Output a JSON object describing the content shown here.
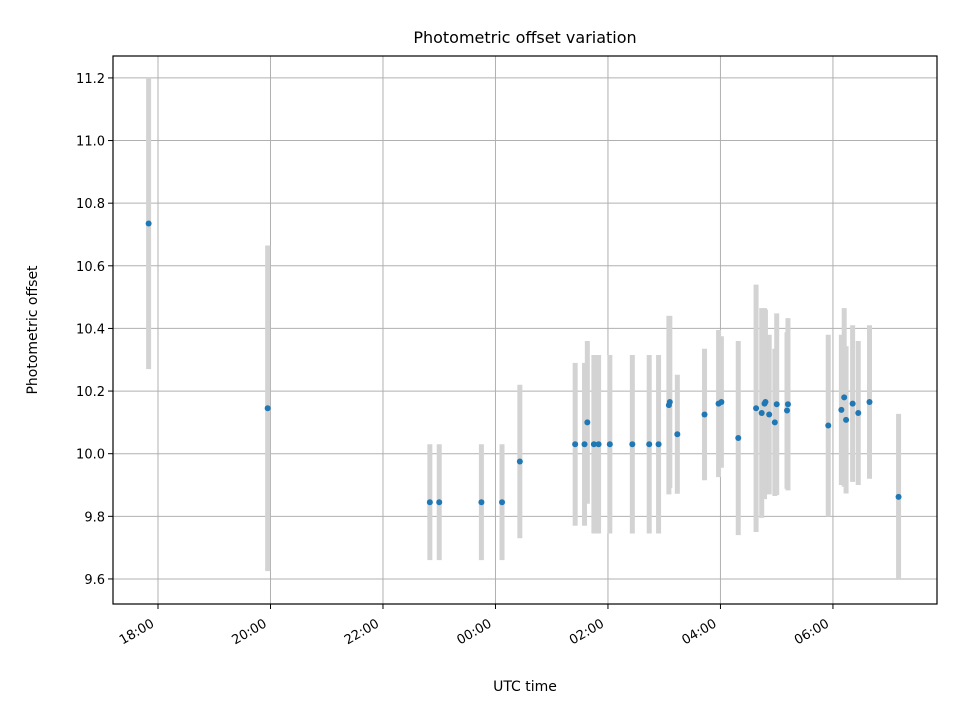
{
  "chart_data": {
    "type": "scatter",
    "title": "Photometric offset variation",
    "xlabel": "UTC time",
    "ylabel": "Photometric offset",
    "x_tick_labels": [
      "18:00",
      "20:00",
      "22:00",
      "00:00",
      "02:00",
      "04:00",
      "06:00"
    ],
    "y_tick_labels": [
      "9.6",
      "9.8",
      "10.0",
      "10.2",
      "10.4",
      "10.6",
      "10.8",
      "11.0",
      "11.2"
    ],
    "xlim_hours": [
      17.2,
      31.85
    ],
    "ylim": [
      9.52,
      11.27
    ],
    "x_ticks_hours": [
      18,
      20,
      22,
      24,
      26,
      28,
      30
    ],
    "y_ticks": [
      9.6,
      9.8,
      10.0,
      10.2,
      10.4,
      10.6,
      10.8,
      11.0,
      11.2
    ],
    "grid": true,
    "marker_color": "#1f77b4",
    "errorbar_color": "#d3d3d3",
    "points": [
      {
        "t": "17:50",
        "y": 10.735,
        "err": 0.465
      },
      {
        "t": "19:57",
        "y": 10.145,
        "err": 0.52
      },
      {
        "t": "22:50",
        "y": 9.845,
        "err": 0.185
      },
      {
        "t": "23:00",
        "y": 9.845,
        "err": 0.185
      },
      {
        "t": "23:45",
        "y": 9.845,
        "err": 0.185
      },
      {
        "t": "00:07",
        "y": 9.845,
        "err": 0.185
      },
      {
        "t": "00:26",
        "y": 9.975,
        "err": 0.245
      },
      {
        "t": "01:25",
        "y": 10.03,
        "err": 0.26
      },
      {
        "t": "01:35",
        "y": 10.03,
        "err": 0.26
      },
      {
        "t": "01:38",
        "y": 10.1,
        "err": 0.26
      },
      {
        "t": "01:45",
        "y": 10.03,
        "err": 0.285
      },
      {
        "t": "01:50",
        "y": 10.03,
        "err": 0.285
      },
      {
        "t": "02:02",
        "y": 10.03,
        "err": 0.285
      },
      {
        "t": "02:26",
        "y": 10.03,
        "err": 0.285
      },
      {
        "t": "02:44",
        "y": 10.03,
        "err": 0.285
      },
      {
        "t": "02:54",
        "y": 10.03,
        "err": 0.285
      },
      {
        "t": "03:05",
        "y": 10.155,
        "err": 0.285
      },
      {
        "t": "03:06",
        "y": 10.165,
        "err": 0.275
      },
      {
        "t": "03:14",
        "y": 10.062,
        "err": 0.19
      },
      {
        "t": "03:43",
        "y": 10.125,
        "err": 0.21
      },
      {
        "t": "03:58",
        "y": 10.16,
        "err": 0.235
      },
      {
        "t": "04:01",
        "y": 10.165,
        "err": 0.21
      },
      {
        "t": "04:19",
        "y": 10.05,
        "err": 0.31
      },
      {
        "t": "04:38",
        "y": 10.145,
        "err": 0.395
      },
      {
        "t": "04:44",
        "y": 10.13,
        "err": 0.335
      },
      {
        "t": "04:47",
        "y": 10.16,
        "err": 0.305
      },
      {
        "t": "04:48",
        "y": 10.165,
        "err": 0.295
      },
      {
        "t": "04:52",
        "y": 10.125,
        "err": 0.255
      },
      {
        "t": "04:58",
        "y": 10.1,
        "err": 0.235
      },
      {
        "t": "05:00",
        "y": 10.158,
        "err": 0.29
      },
      {
        "t": "05:11",
        "y": 10.138,
        "err": 0.25
      },
      {
        "t": "05:12",
        "y": 10.158,
        "err": 0.275
      },
      {
        "t": "05:55",
        "y": 10.09,
        "err": 0.29
      },
      {
        "t": "06:09",
        "y": 10.14,
        "err": 0.24
      },
      {
        "t": "06:12",
        "y": 10.18,
        "err": 0.285
      },
      {
        "t": "06:14",
        "y": 10.108,
        "err": 0.235
      },
      {
        "t": "06:21",
        "y": 10.16,
        "err": 0.25
      },
      {
        "t": "06:27",
        "y": 10.13,
        "err": 0.23
      },
      {
        "t": "06:39",
        "y": 10.165,
        "err": 0.245
      },
      {
        "t": "07:10",
        "y": 9.862,
        "err": 0.265
      }
    ]
  }
}
